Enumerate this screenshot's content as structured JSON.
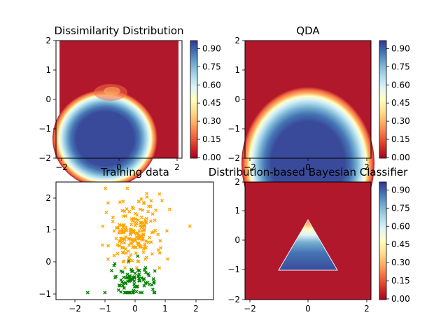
{
  "chart_data": [
    {
      "type": "heatmap",
      "title": "Dissimilarity Distribution",
      "xlim": [
        -2,
        2
      ],
      "ylim": [
        -2,
        2
      ],
      "xticks": [
        "−2",
        "0",
        "2"
      ],
      "yticks": [
        "2",
        "1",
        "0",
        "−1",
        "−2"
      ],
      "colorbar": {
        "colormap": "RdYlBu",
        "range": [
          0,
          1
        ],
        "ticks": [
          "0.90",
          "0.75",
          "0.60",
          "0.45",
          "0.30",
          "0.15",
          "0.00"
        ]
      },
      "region": {
        "shape": "blob",
        "center": [
          -0.2,
          -1.4
        ],
        "value_center": 0.95
      }
    },
    {
      "type": "heatmap",
      "title": "QDA",
      "xlim": [
        -2,
        2
      ],
      "ylim": [
        -2,
        2
      ],
      "xticks": [
        "−2",
        "0",
        "2"
      ],
      "yticks": [
        "2",
        "1",
        "0",
        "−1",
        "−2"
      ],
      "colorbar": {
        "colormap": "RdYlBu",
        "range": [
          0,
          1
        ],
        "ticks": [
          "0.90",
          "0.75",
          "0.60",
          "0.45",
          "0.30",
          "0.15",
          "0.00"
        ]
      },
      "region": {
        "shape": "ellipse",
        "center": [
          -0.1,
          -1.6
        ],
        "value_center": 0.95
      }
    },
    {
      "type": "scatter",
      "title": "Training data",
      "xlim": [
        -2.5,
        2.5
      ],
      "ylim": [
        -1.2,
        2.5
      ],
      "xticks": [
        "−2",
        "−1",
        "0",
        "1",
        "2"
      ],
      "yticks": [
        "2",
        "1",
        "0",
        "−1"
      ],
      "marker": "x",
      "series": [
        {
          "color": "#ffa500",
          "center": [
            0.0,
            0.9
          ],
          "spread": [
            0.45,
            0.55
          ],
          "count": 200
        },
        {
          "color": "#008000",
          "center": [
            0.0,
            -0.6
          ],
          "spread": [
            0.35,
            0.25
          ],
          "count": 90
        }
      ]
    },
    {
      "type": "heatmap",
      "title": "Distribution-based Bayesian Classifier",
      "xlim": [
        -2,
        2
      ],
      "ylim": [
        -2,
        2
      ],
      "xticks": [
        "−2",
        "0",
        "2"
      ],
      "yticks": [
        "2",
        "1",
        "0",
        "−1",
        "−2"
      ],
      "colorbar": {
        "colormap": "RdYlBu",
        "range": [
          0,
          1
        ],
        "ticks": [
          "0.90",
          "0.75",
          "0.60",
          "0.45",
          "0.30",
          "0.15",
          "0.00"
        ]
      },
      "region": {
        "shape": "triangle",
        "vertices": [
          [
            -1,
            -1
          ],
          [
            1,
            -1
          ],
          [
            0,
            0.65
          ]
        ],
        "value_center": 0.95
      }
    }
  ]
}
